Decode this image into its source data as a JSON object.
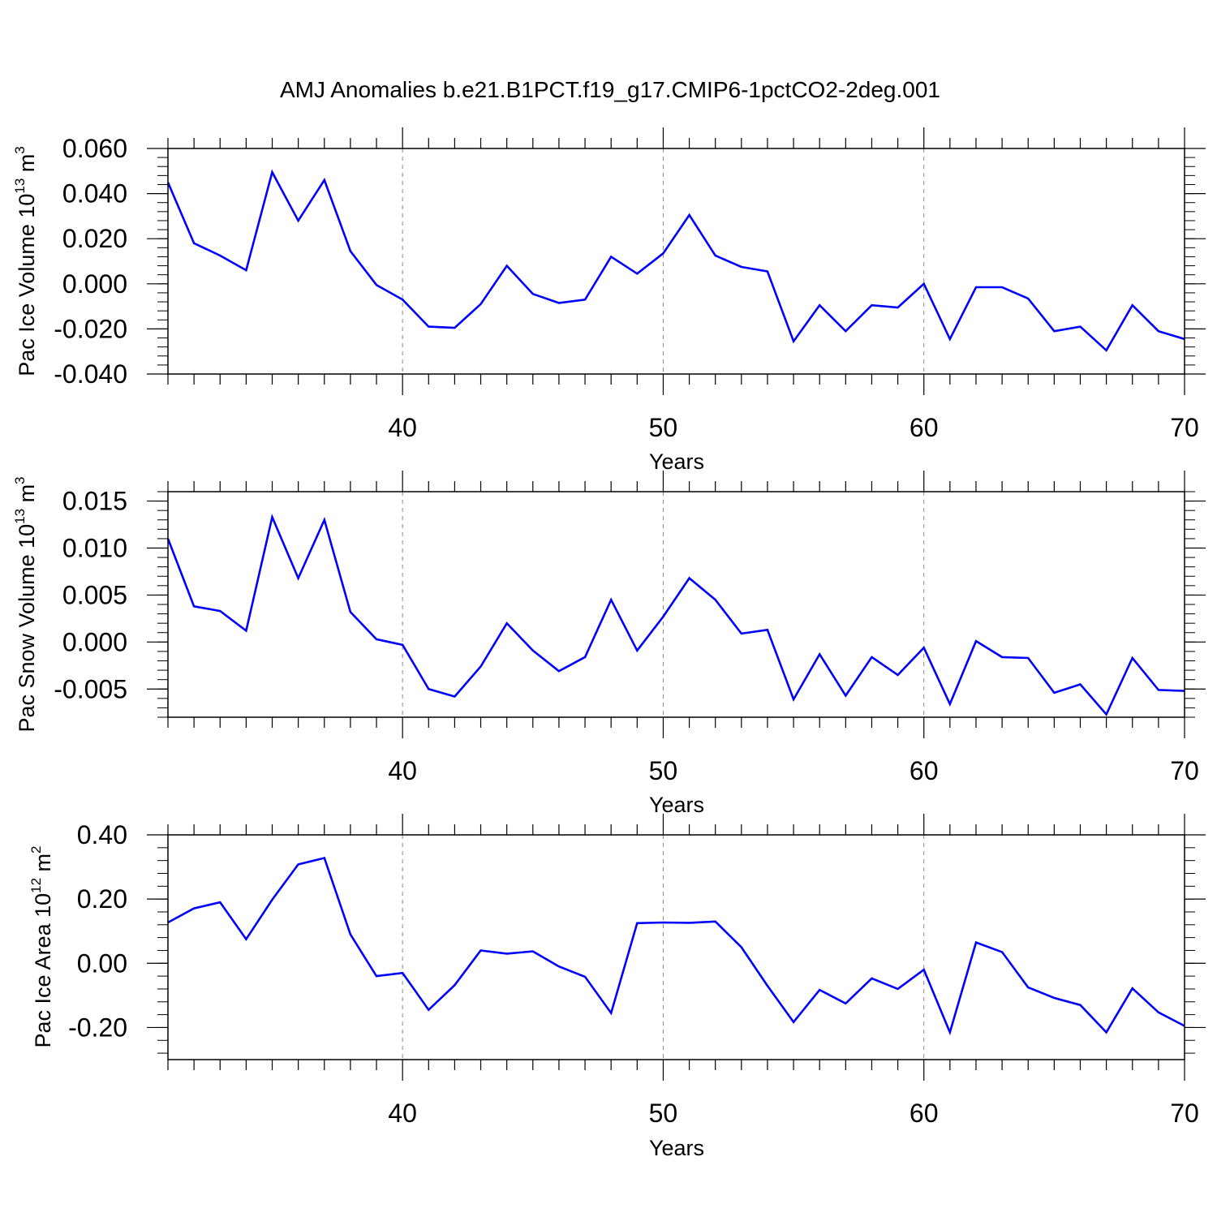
{
  "chart_data": [
    {
      "type": "line",
      "title": "AMJ Anomalies b.e21.B1PCT.f19_g17.CMIP6-1pctCO2-2deg.001",
      "xlabel": "Years",
      "ylabel": {
        "prefix": "Pac Ice Volume 10",
        "exp1": "13",
        "mid": " m",
        "exp2": "3"
      },
      "xlim": [
        31,
        70
      ],
      "ylim": [
        -0.04,
        0.06
      ],
      "xticks": [
        40,
        50,
        60,
        70
      ],
      "yticks": [
        -0.04,
        -0.02,
        0.0,
        0.02,
        0.04,
        0.06
      ],
      "ytick_labels": [
        "-0.040",
        "-0.020",
        "0.000",
        "0.020",
        "0.040",
        "0.060"
      ],
      "ymid_step": 0.004,
      "color": "#0000ff",
      "x": [
        31,
        32,
        33,
        34,
        35,
        36,
        37,
        38,
        39,
        40,
        41,
        42,
        43,
        44,
        45,
        46,
        47,
        48,
        49,
        50,
        51,
        52,
        53,
        54,
        55,
        56,
        57,
        58,
        59,
        60,
        61,
        62,
        63,
        64,
        65,
        66,
        67,
        68,
        69,
        70
      ],
      "values": [
        0.045,
        0.018,
        0.0125,
        0.006,
        0.0495,
        0.028,
        0.046,
        0.0145,
        -0.0005,
        -0.007,
        -0.019,
        -0.0195,
        -0.009,
        0.008,
        -0.0045,
        -0.0085,
        -0.007,
        0.012,
        0.0045,
        0.0135,
        0.0305,
        0.0125,
        0.0075,
        0.0055,
        -0.0255,
        -0.0095,
        -0.021,
        -0.0095,
        -0.0105,
        0.0,
        -0.0245,
        -0.0015,
        -0.0015,
        -0.0065,
        -0.021,
        -0.019,
        -0.0295,
        -0.0095,
        -0.021,
        -0.0245
      ]
    },
    {
      "type": "line",
      "title": "",
      "xlabel": "Years",
      "ylabel": {
        "prefix": "Pac Snow Volume 10",
        "exp1": "13",
        "mid": " m",
        "exp2": "3"
      },
      "xlim": [
        31,
        70
      ],
      "ylim": [
        -0.008,
        0.016
      ],
      "xticks": [
        40,
        50,
        60,
        70
      ],
      "yticks": [
        -0.005,
        0.0,
        0.005,
        0.01,
        0.015
      ],
      "ytick_labels": [
        "-0.005",
        "0.000",
        "0.005",
        "0.010",
        "0.015"
      ],
      "ymid_step": 0.001,
      "color": "#0000ff",
      "x": [
        31,
        32,
        33,
        34,
        35,
        36,
        37,
        38,
        39,
        40,
        41,
        42,
        43,
        44,
        45,
        46,
        47,
        48,
        49,
        50,
        51,
        52,
        53,
        54,
        55,
        56,
        57,
        58,
        59,
        60,
        61,
        62,
        63,
        64,
        65,
        66,
        67,
        68,
        69,
        70
      ],
      "values": [
        0.011,
        0.0038,
        0.0033,
        0.0012,
        0.0133,
        0.0068,
        0.013,
        0.0032,
        0.0003,
        -0.0003,
        -0.005,
        -0.0058,
        -0.0026,
        0.002,
        -0.0009,
        -0.0031,
        -0.0016,
        0.0045,
        -0.0009,
        0.0027,
        0.0068,
        0.0045,
        0.0009,
        0.0013,
        -0.0061,
        -0.0013,
        -0.0057,
        -0.0016,
        -0.0035,
        -0.0006,
        -0.0066,
        0.0001,
        -0.0016,
        -0.0017,
        -0.0054,
        -0.0045,
        -0.0077,
        -0.0017,
        -0.0051,
        -0.0052
      ]
    },
    {
      "type": "line",
      "title": "",
      "xlabel": "Years",
      "ylabel": {
        "prefix": "Pac Ice Area 10",
        "exp1": "12",
        "mid": " m",
        "exp2": "2"
      },
      "xlim": [
        31,
        70
      ],
      "ylim": [
        -0.3,
        0.4
      ],
      "xticks": [
        40,
        50,
        60,
        70
      ],
      "yticks": [
        -0.2,
        0.0,
        0.2,
        0.4
      ],
      "ytick_labels": [
        "-0.20",
        "0.00",
        "0.20",
        "0.40"
      ],
      "ymid_step": 0.04,
      "color": "#0000ff",
      "x": [
        31,
        32,
        33,
        34,
        35,
        36,
        37,
        38,
        39,
        40,
        41,
        42,
        43,
        44,
        45,
        46,
        47,
        48,
        49,
        50,
        51,
        52,
        53,
        54,
        55,
        56,
        57,
        58,
        59,
        60,
        61,
        62,
        63,
        64,
        65,
        66,
        67,
        68,
        69,
        70
      ],
      "values": [
        0.127,
        0.171,
        0.19,
        0.075,
        0.198,
        0.308,
        0.328,
        0.09,
        -0.04,
        -0.03,
        -0.145,
        -0.068,
        0.04,
        0.03,
        0.037,
        -0.01,
        -0.042,
        -0.155,
        0.125,
        0.127,
        0.126,
        0.13,
        0.05,
        -0.07,
        -0.183,
        -0.083,
        -0.125,
        -0.047,
        -0.08,
        -0.02,
        -0.215,
        0.065,
        0.035,
        -0.075,
        -0.108,
        -0.13,
        -0.215,
        -0.078,
        -0.153,
        -0.195
      ]
    }
  ]
}
